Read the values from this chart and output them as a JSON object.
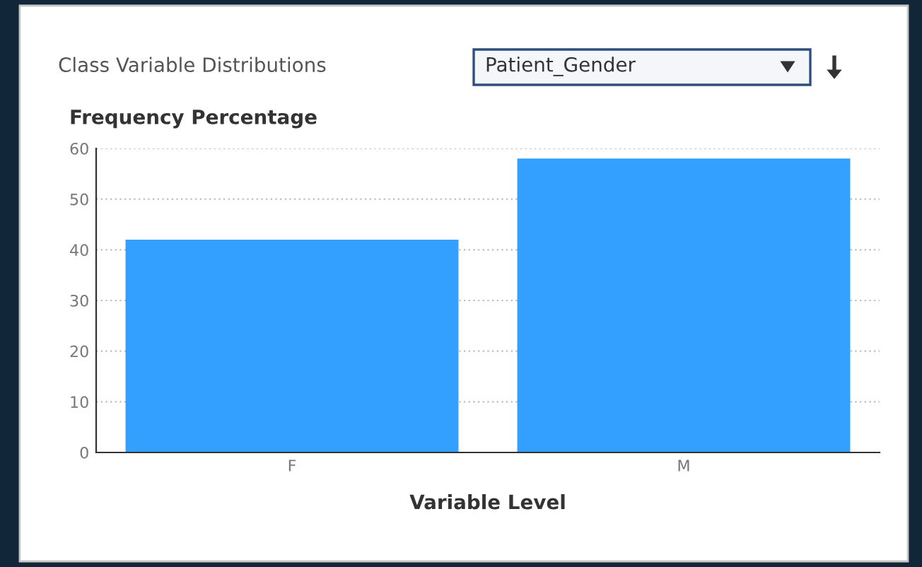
{
  "chart_data": {
    "type": "bar",
    "title": "Class Variable Distributions",
    "subtitle": "Patient_Gender",
    "ylabel": "Frequency Percentage",
    "xlabel": "Variable Level",
    "categories": [
      "F",
      "M"
    ],
    "values": [
      42,
      58
    ],
    "color": "#339ffe",
    "ylim": [
      0,
      60
    ],
    "yticks": [
      0,
      10,
      20,
      30,
      40,
      50,
      60
    ],
    "grid": "y"
  }
}
